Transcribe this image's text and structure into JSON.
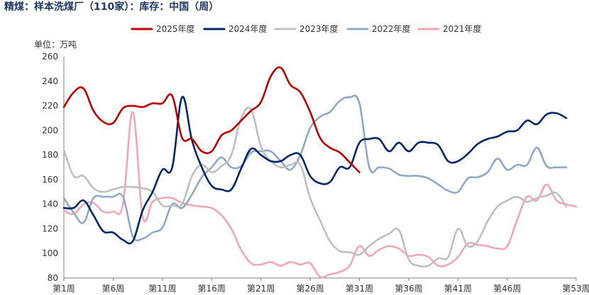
{
  "chart_data": {
    "type": "line",
    "title": "精煤：样本洗煤厂（110家）：库存：中国（周）",
    "unit_label": "单位：万吨",
    "ylim": [
      80,
      260
    ],
    "yticks": [
      80,
      100,
      120,
      140,
      160,
      180,
      200,
      220,
      240,
      260
    ],
    "x_range": [
      1,
      53
    ],
    "xticks": [
      {
        "week": 1,
        "label": "第1周"
      },
      {
        "week": 6,
        "label": "第6周"
      },
      {
        "week": 11,
        "label": "第11周"
      },
      {
        "week": 16,
        "label": "第16周"
      },
      {
        "week": 21,
        "label": "第21周"
      },
      {
        "week": 26,
        "label": "第26周"
      },
      {
        "week": 31,
        "label": "第31周"
      },
      {
        "week": 36,
        "label": "第36周"
      },
      {
        "week": 41,
        "label": "第41周"
      },
      {
        "week": 46,
        "label": "第46周"
      },
      {
        "week": 53,
        "label": "第53周"
      }
    ],
    "grid": false,
    "legend_position": "top-center",
    "series": [
      {
        "name": "2025年度",
        "color": "#c00000",
        "x": [
          1,
          2,
          3,
          4,
          5,
          6,
          7,
          8,
          9,
          10,
          11,
          12,
          13,
          14,
          15,
          16,
          17,
          18,
          19,
          20,
          21,
          22,
          23,
          24,
          25,
          26,
          27,
          28,
          29,
          30,
          31
        ],
        "values": [
          219,
          231,
          234,
          216,
          207,
          206,
          218,
          220,
          219,
          222,
          222,
          228,
          194,
          193,
          183,
          183,
          196,
          200,
          208,
          216,
          223,
          244,
          251,
          237,
          231,
          215,
          194,
          186,
          182,
          174,
          166
        ]
      },
      {
        "name": "2024年度",
        "color": "#002868",
        "x": [
          1,
          2,
          3,
          4,
          5,
          6,
          7,
          8,
          9,
          10,
          11,
          12,
          13,
          14,
          15,
          16,
          17,
          18,
          19,
          20,
          21,
          22,
          23,
          24,
          25,
          26,
          27,
          28,
          29,
          30,
          31,
          32,
          33,
          34,
          35,
          36,
          37,
          38,
          39,
          40,
          41,
          42,
          43,
          44,
          45,
          46,
          47,
          48,
          49,
          50,
          51,
          52
        ],
        "values": [
          137,
          137,
          143,
          131,
          118,
          117,
          111,
          110,
          135,
          150,
          168,
          170,
          227,
          192,
          170,
          155,
          152,
          152,
          169,
          185,
          180,
          175,
          175,
          180,
          180,
          163,
          157,
          158,
          170,
          170,
          190,
          193,
          193,
          183,
          190,
          183,
          190,
          190,
          188,
          175,
          175,
          181,
          189,
          193,
          195,
          199,
          200,
          208,
          205,
          213,
          214,
          210
        ]
      },
      {
        "name": "2023年度",
        "color": "#bfbfbf",
        "x": [
          1,
          2,
          3,
          4,
          5,
          6,
          7,
          8,
          9,
          10,
          11,
          12,
          13,
          14,
          15,
          16,
          17,
          18,
          19,
          20,
          21,
          22,
          23,
          24,
          25,
          26,
          27,
          28,
          29,
          30,
          31,
          32,
          33,
          34,
          35,
          36,
          37,
          38,
          39,
          40,
          41,
          42,
          43,
          44,
          45,
          46,
          47,
          48,
          49,
          50,
          51,
          52
        ],
        "values": [
          184,
          163,
          163,
          153,
          150,
          152,
          154,
          154,
          153,
          150,
          139,
          139,
          140,
          163,
          172,
          166,
          171,
          180,
          210,
          217,
          187,
          175,
          170,
          172,
          172,
          145,
          127,
          110,
          102,
          101,
          99,
          106,
          112,
          116,
          119,
          95,
          90,
          90,
          96,
          97,
          120,
          106,
          110,
          126,
          138,
          143,
          146,
          142,
          145,
          147,
          149,
          138
        ]
      },
      {
        "name": "2022年度",
        "color": "#8ea9c8",
        "x": [
          1,
          2,
          3,
          4,
          5,
          6,
          7,
          8,
          9,
          10,
          11,
          12,
          13,
          14,
          15,
          16,
          17,
          18,
          19,
          20,
          21,
          22,
          23,
          24,
          25,
          26,
          27,
          28,
          29,
          30,
          31,
          32,
          33,
          34,
          35,
          36,
          37,
          38,
          39,
          40,
          41,
          42,
          43,
          44,
          45,
          46,
          47,
          48,
          49,
          50,
          51,
          52
        ],
        "values": [
          145,
          133,
          125,
          145,
          146,
          146,
          146,
          114,
          112,
          117,
          121,
          140,
          137,
          148,
          162,
          170,
          178,
          170,
          171,
          182,
          183,
          183,
          175,
          168,
          180,
          202,
          211,
          215,
          224,
          227,
          222,
          170,
          170,
          169,
          164,
          163,
          163,
          161,
          156,
          151,
          150,
          161,
          162,
          166,
          177,
          168,
          172,
          172,
          186,
          171,
          170,
          170
        ]
      },
      {
        "name": "2021年度",
        "color": "#f4a6b2",
        "x": [
          1,
          2,
          3,
          4,
          5,
          6,
          7,
          8,
          9,
          10,
          11,
          12,
          13,
          14,
          15,
          16,
          17,
          18,
          19,
          20,
          21,
          22,
          23,
          24,
          25,
          26,
          27,
          28,
          29,
          30,
          31,
          32,
          33,
          34,
          35,
          36,
          37,
          38,
          39,
          40,
          41,
          42,
          43,
          44,
          45,
          46,
          47,
          48,
          49,
          50,
          51,
          52,
          53
        ],
        "values": [
          135,
          132,
          140,
          141,
          134,
          134,
          140,
          215,
          130,
          142,
          145,
          145,
          141,
          139,
          138,
          137,
          131,
          120,
          103,
          92,
          91,
          93,
          90,
          93,
          91,
          92,
          81,
          83,
          85,
          90,
          106,
          98,
          103,
          106,
          104,
          98,
          99,
          97,
          90,
          91,
          97,
          108,
          107,
          106,
          104,
          106,
          127,
          146,
          143,
          156,
          143,
          140,
          138
        ]
      }
    ]
  }
}
